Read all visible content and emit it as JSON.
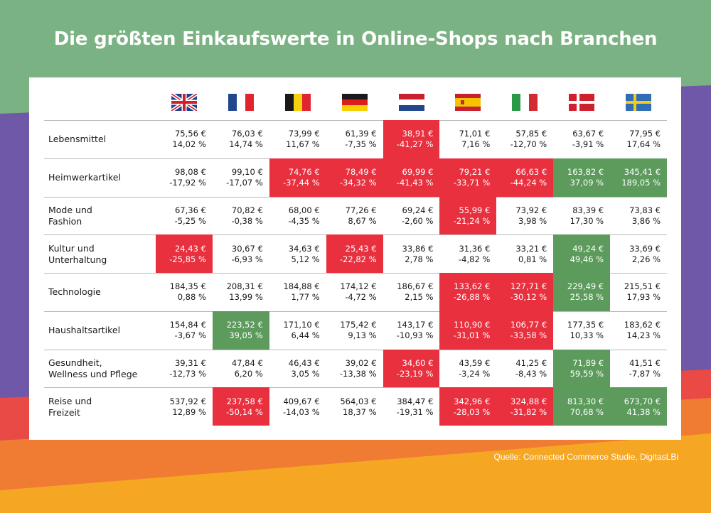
{
  "title": "Die größten Einkaufswerte in Online-Shops nach Branchen",
  "source": "Quelle: Connected Commerce Studie, DigitasLBi",
  "colors": {
    "negative_highlight": "#e8303f",
    "positive_highlight": "#5c9b5c",
    "background_green": "#7bb283",
    "background_purple": "#6f58a8",
    "background_orange": "#f07b32"
  },
  "countries": [
    {
      "flag": "uk-flag-icon"
    },
    {
      "flag": "france-flag-icon"
    },
    {
      "flag": "belgium-flag-icon"
    },
    {
      "flag": "germany-flag-icon"
    },
    {
      "flag": "netherlands-flag-icon"
    },
    {
      "flag": "spain-flag-icon"
    },
    {
      "flag": "italy-flag-icon"
    },
    {
      "flag": "denmark-flag-icon"
    },
    {
      "flag": "sweden-flag-icon"
    }
  ],
  "chart_data": {
    "type": "table",
    "title": "Die größten Einkaufswerte in Online-Shops nach Branchen",
    "rows": [
      {
        "label": "Lebensmittel",
        "cells": [
          {
            "value": "75,56 €",
            "change": "14,02 %",
            "highlight": ""
          },
          {
            "value": "76,03 €",
            "change": "14,74 %",
            "highlight": ""
          },
          {
            "value": "73,99 €",
            "change": "11,67 %",
            "highlight": ""
          },
          {
            "value": "61,39 €",
            "change": "-7,35 %",
            "highlight": ""
          },
          {
            "value": "38,91 €",
            "change": "-41,27 %",
            "highlight": "red"
          },
          {
            "value": "71,01 €",
            "change": "7,16 %",
            "highlight": ""
          },
          {
            "value": "57,85 €",
            "change": "-12,70 %",
            "highlight": ""
          },
          {
            "value": "63,67 €",
            "change": "-3,91 %",
            "highlight": ""
          },
          {
            "value": "77,95 €",
            "change": "17,64 %",
            "highlight": ""
          }
        ]
      },
      {
        "label": "Heimwerkartikel",
        "cells": [
          {
            "value": "98,08 €",
            "change": "-17,92 %",
            "highlight": ""
          },
          {
            "value": "99,10 €",
            "change": "-17,07 %",
            "highlight": ""
          },
          {
            "value": "74,76 €",
            "change": "-37,44 %",
            "highlight": "red"
          },
          {
            "value": "78,49 €",
            "change": "-34,32 %",
            "highlight": "red"
          },
          {
            "value": "69,99 €",
            "change": "-41,43 %",
            "highlight": "red"
          },
          {
            "value": "79,21 €",
            "change": "-33,71 %",
            "highlight": "red"
          },
          {
            "value": "66,63 €",
            "change": "-44,24 %",
            "highlight": "red"
          },
          {
            "value": "163,82 €",
            "change": "37,09 %",
            "highlight": "green"
          },
          {
            "value": "345,41 €",
            "change": "189,05 %",
            "highlight": "green"
          }
        ]
      },
      {
        "label": "Mode und\nFashion",
        "cells": [
          {
            "value": "67,36 €",
            "change": "-5,25 %",
            "highlight": ""
          },
          {
            "value": "70,82 €",
            "change": "-0,38 %",
            "highlight": ""
          },
          {
            "value": "68,00 €",
            "change": "-4,35 %",
            "highlight": ""
          },
          {
            "value": "77,26 €",
            "change": "8,67 %",
            "highlight": ""
          },
          {
            "value": "69,24 €",
            "change": "-2,60 %",
            "highlight": ""
          },
          {
            "value": "55,99 €",
            "change": "-21,24 %",
            "highlight": "red"
          },
          {
            "value": "73,92 €",
            "change": "3,98 %",
            "highlight": ""
          },
          {
            "value": "83,39 €",
            "change": "17,30 %",
            "highlight": ""
          },
          {
            "value": "73,83 €",
            "change": "3,86 %",
            "highlight": ""
          }
        ]
      },
      {
        "label": "Kultur und\nUnterhaltung",
        "cells": [
          {
            "value": "24,43 €",
            "change": "-25,85 %",
            "highlight": "red"
          },
          {
            "value": "30,67 €",
            "change": "-6,93 %",
            "highlight": ""
          },
          {
            "value": "34,63 €",
            "change": "5,12 %",
            "highlight": ""
          },
          {
            "value": "25,43 €",
            "change": "-22,82 %",
            "highlight": "red"
          },
          {
            "value": "33,86 €",
            "change": "2,78 %",
            "highlight": ""
          },
          {
            "value": "31,36 €",
            "change": "-4,82 %",
            "highlight": ""
          },
          {
            "value": "33,21 €",
            "change": "0,81 %",
            "highlight": ""
          },
          {
            "value": "49,24 €",
            "change": "49,46 %",
            "highlight": "green"
          },
          {
            "value": "33,69 €",
            "change": "2,26 %",
            "highlight": ""
          }
        ]
      },
      {
        "label": "Technologie",
        "cells": [
          {
            "value": "184,35 €",
            "change": "0,88 %",
            "highlight": ""
          },
          {
            "value": "208,31 €",
            "change": "13,99 %",
            "highlight": ""
          },
          {
            "value": "184,88 €",
            "change": "1,77 %",
            "highlight": ""
          },
          {
            "value": "174,12 €",
            "change": "-4,72 %",
            "highlight": ""
          },
          {
            "value": "186,67 €",
            "change": "2,15 %",
            "highlight": ""
          },
          {
            "value": "133,62 €",
            "change": "-26,88 %",
            "highlight": "red"
          },
          {
            "value": "127,71 €",
            "change": "-30,12 %",
            "highlight": "red"
          },
          {
            "value": "229,49 €",
            "change": "25,58 %",
            "highlight": "green"
          },
          {
            "value": "215,51 €",
            "change": "17,93 %",
            "highlight": ""
          }
        ]
      },
      {
        "label": "Haushaltsartikel",
        "cells": [
          {
            "value": "154,84 €",
            "change": "-3,67 %",
            "highlight": ""
          },
          {
            "value": "223,52 €",
            "change": "39,05 %",
            "highlight": "green"
          },
          {
            "value": "171,10 €",
            "change": "6,44 %",
            "highlight": ""
          },
          {
            "value": "175,42 €",
            "change": "9,13 %",
            "highlight": ""
          },
          {
            "value": "143,17 €",
            "change": "-10,93 %",
            "highlight": ""
          },
          {
            "value": "110,90 €",
            "change": "-31,01 %",
            "highlight": "red"
          },
          {
            "value": "106,77 €",
            "change": "-33,58 %",
            "highlight": "red"
          },
          {
            "value": "177,35 €",
            "change": "10,33 %",
            "highlight": ""
          },
          {
            "value": "183,62 €",
            "change": "14,23 %",
            "highlight": ""
          }
        ]
      },
      {
        "label": "Gesundheit,\nWellness und Pflege",
        "cells": [
          {
            "value": "39,31 €",
            "change": "-12,73 %",
            "highlight": ""
          },
          {
            "value": "47,84 €",
            "change": "6,20 %",
            "highlight": ""
          },
          {
            "value": "46,43 €",
            "change": "3,05 %",
            "highlight": ""
          },
          {
            "value": "39,02 €",
            "change": "-13,38 %",
            "highlight": ""
          },
          {
            "value": "34,60 €",
            "change": "-23,19 %",
            "highlight": "red"
          },
          {
            "value": "43,59 €",
            "change": "-3,24 %",
            "highlight": ""
          },
          {
            "value": "41,25 €",
            "change": "-8,43 %",
            "highlight": ""
          },
          {
            "value": "71,89 €",
            "change": "59,59 %",
            "highlight": "green"
          },
          {
            "value": "41,51 €",
            "change": "-7,87 %",
            "highlight": ""
          }
        ]
      },
      {
        "label": "Reise und\nFreizeit",
        "cells": [
          {
            "value": "537,92 €",
            "change": "12,89 %",
            "highlight": ""
          },
          {
            "value": "237,58 €",
            "change": "-50,14 %",
            "highlight": "red"
          },
          {
            "value": "409,67 €",
            "change": "-14,03 %",
            "highlight": ""
          },
          {
            "value": "564,03 €",
            "change": "18,37 %",
            "highlight": ""
          },
          {
            "value": "384,47 €",
            "change": "-19,31 %",
            "highlight": ""
          },
          {
            "value": "342,96 €",
            "change": "-28,03 %",
            "highlight": "red"
          },
          {
            "value": "324,88 €",
            "change": "-31,82 %",
            "highlight": "red"
          },
          {
            "value": "813,30 €",
            "change": "70,68 %",
            "highlight": "green"
          },
          {
            "value": "673,70 €",
            "change": "41,38 %",
            "highlight": "green"
          }
        ]
      }
    ]
  }
}
